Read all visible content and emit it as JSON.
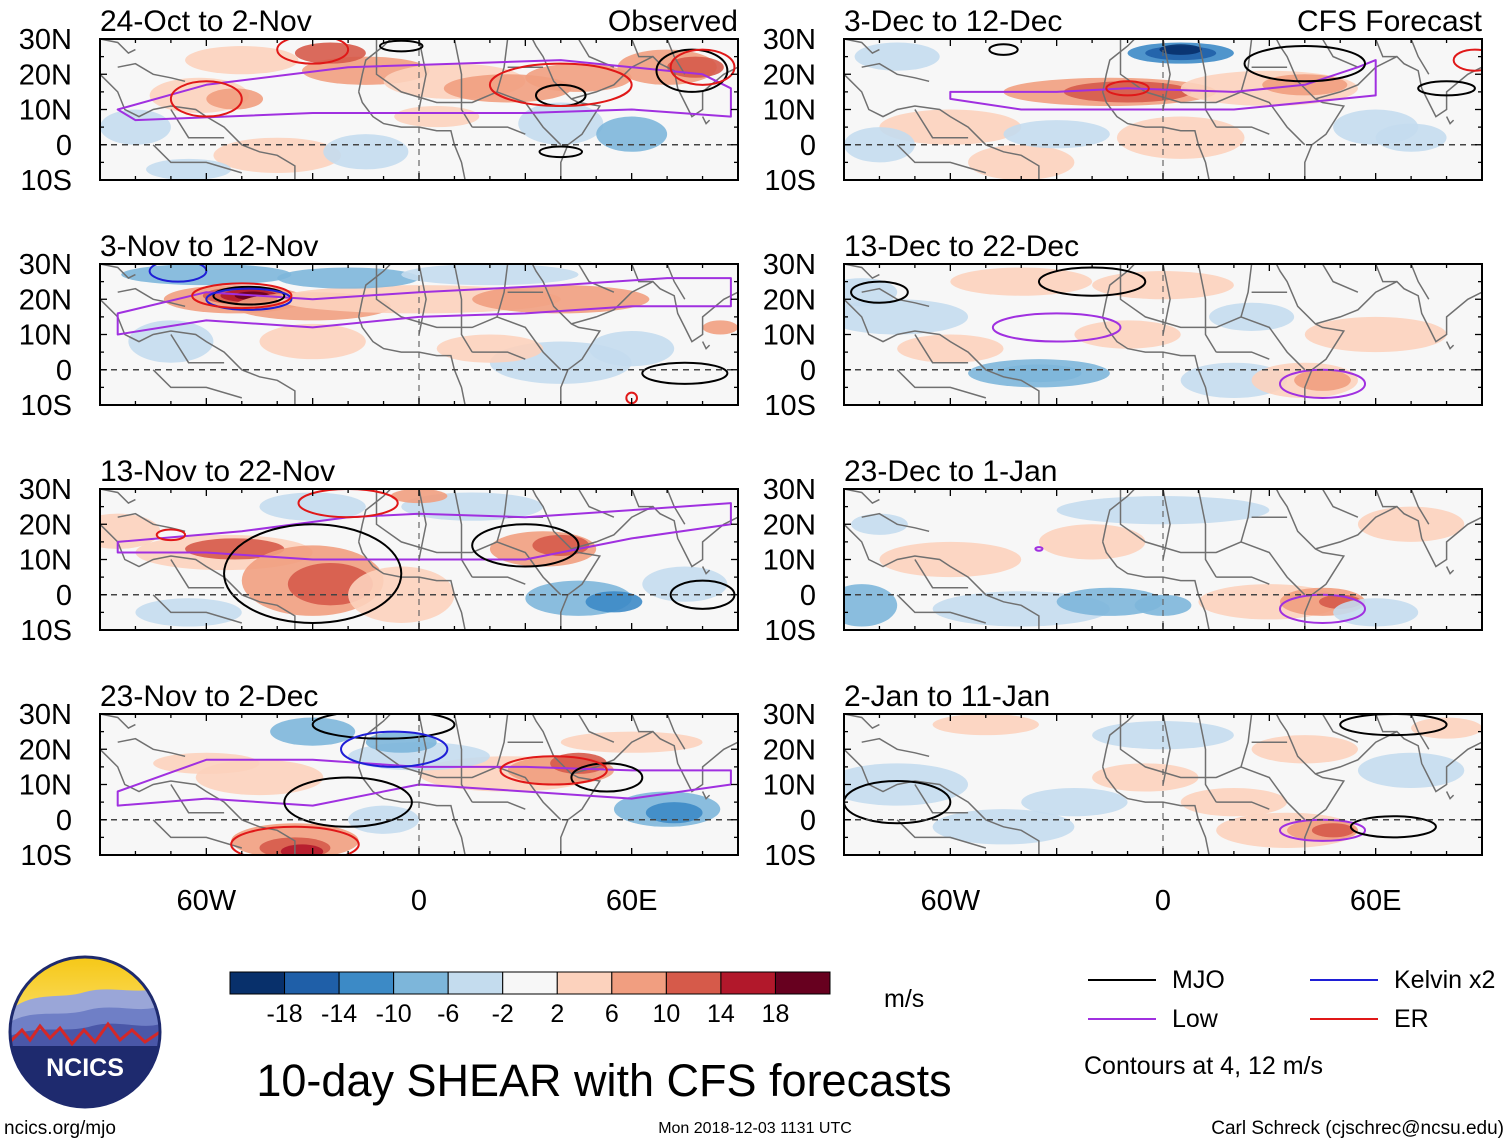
{
  "chart_data": {
    "type": "heatmap",
    "title": "10-day SHEAR with CFS forecasts",
    "units": "m/s",
    "lat_ticks": [
      "30N",
      "20N",
      "10N",
      "0",
      "10S"
    ],
    "lon_ticks": [
      "60W",
      "0",
      "60E"
    ],
    "lat_range": [
      -10,
      30
    ],
    "lon_range": [
      -90,
      90
    ],
    "observed_label": "Observed",
    "forecast_label": "CFS Forecast",
    "panels": [
      {
        "id": "p1",
        "title": "24-Oct to 2-Nov",
        "kind": "observed"
      },
      {
        "id": "p2",
        "title": "3-Nov to 12-Nov",
        "kind": "observed"
      },
      {
        "id": "p3",
        "title": "13-Nov to 22-Nov",
        "kind": "observed"
      },
      {
        "id": "p4",
        "title": "23-Nov to 2-Dec",
        "kind": "observed"
      },
      {
        "id": "p5",
        "title": "3-Dec to 12-Dec",
        "kind": "forecast"
      },
      {
        "id": "p6",
        "title": "13-Dec to 22-Dec",
        "kind": "forecast"
      },
      {
        "id": "p7",
        "title": "23-Dec to 1-Jan",
        "kind": "forecast"
      },
      {
        "id": "p8",
        "title": "2-Jan to 11-Jan",
        "kind": "forecast"
      }
    ],
    "colorbar": {
      "ticks": [
        "-18",
        "-14",
        "-10",
        "-6",
        "-2",
        "2",
        "6",
        "10",
        "14",
        "18"
      ],
      "colors": [
        "#08306b",
        "#1f5fa8",
        "#3c8ac6",
        "#7db6da",
        "#c4dcee",
        "#f7f7f7",
        "#fcd2bd",
        "#f19e80",
        "#d65a4a",
        "#b2182b",
        "#67001f"
      ]
    },
    "legend": {
      "entries": [
        {
          "label": "MJO",
          "color": "#000000"
        },
        {
          "label": "Kelvin x2",
          "color": "#1f1fd6"
        },
        {
          "label": "Low",
          "color": "#a030e0"
        },
        {
          "label": "ER",
          "color": "#e01818"
        }
      ],
      "note": "Contours at 4, 12 m/s"
    }
  },
  "logo": {
    "text": "NCICS"
  },
  "footer": {
    "left": "ncics.org/mjo",
    "center": "Mon 2018-12-03 1131 UTC",
    "right": "Carl Schreck (cjschrec@ncsu.edu)"
  }
}
